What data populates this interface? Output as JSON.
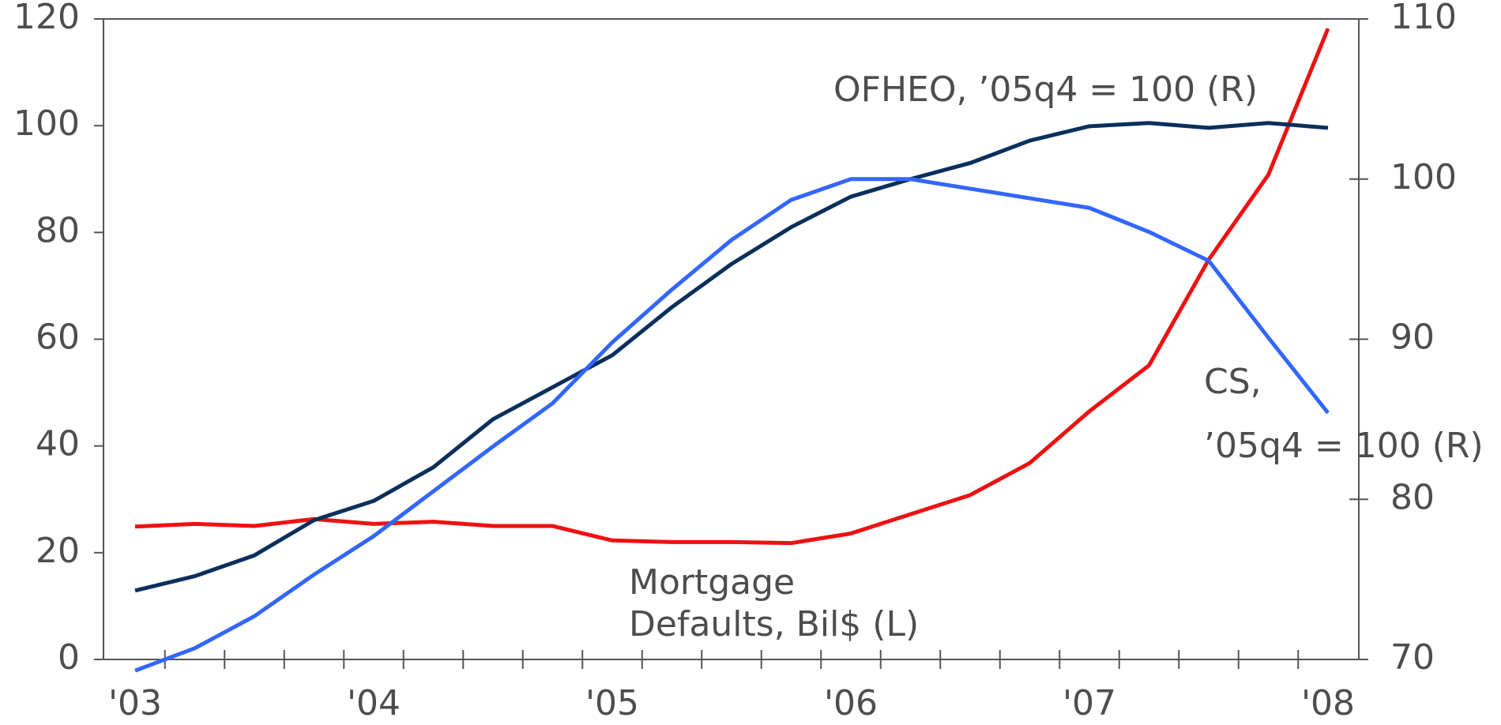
{
  "chart_data": {
    "type": "line",
    "categories": [
      "'03",
      null,
      null,
      null,
      "'04",
      null,
      null,
      null,
      "'05",
      null,
      null,
      null,
      "'06",
      null,
      null,
      null,
      "'07",
      null,
      null,
      null,
      "'08"
    ],
    "series": [
      {
        "name": "Mortgage Defaults, Bil$ (L)",
        "color": "#ee1111",
        "axis": "y",
        "values": [
          24.9,
          25.4,
          25,
          26.3,
          25.4,
          25.8,
          25,
          25,
          22.3,
          22,
          22,
          21.8,
          23.6,
          27.2,
          30.8,
          36.8,
          46.5,
          55.1,
          74.9,
          90.8,
          118.2
        ]
      },
      {
        "name": "OFHEO, ’05q4 = 100 (R)",
        "color": "#0a2f5c",
        "axis": "y2",
        "values": [
          74.3,
          75.2,
          76.5,
          78.7,
          79.9,
          82.0,
          85.0,
          87.0,
          89.0,
          92.0,
          94.7,
          97.0,
          98.9,
          100.0,
          101.0,
          102.4,
          103.3,
          103.5,
          103.2,
          103.5,
          103.2
        ]
      },
      {
        "name": "CS, ’05q4 = 100 (R)",
        "color": "#3366ff",
        "axis": "y2",
        "values": [
          69.3,
          70.7,
          72.7,
          75.3,
          77.7,
          80.5,
          83.3,
          86.0,
          89.8,
          93.1,
          96.2,
          98.7,
          100,
          100,
          99.4,
          98.8,
          98.2,
          96.7,
          94.9,
          90.1,
          85.4
        ]
      }
    ],
    "annotations": [
      "OFHEO, ’05q4 = 100 (R)",
      "CS,",
      "’05q4 = 100 (R)",
      "Mortgage",
      "Defaults, Bil$ (L)"
    ],
    "ylim": [
      0,
      120
    ],
    "yticks": [
      0,
      20,
      40,
      60,
      80,
      100,
      120
    ],
    "y2lim": [
      70,
      110
    ],
    "y2ticks": [
      70,
      80,
      90,
      100,
      110
    ]
  }
}
